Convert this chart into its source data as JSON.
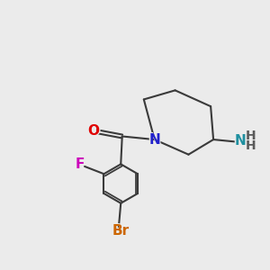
{
  "background_color": "#ebebeb",
  "bond_color": "#3a3a3a",
  "bond_width": 1.5,
  "atom_colors": {
    "O": "#e00000",
    "N_amide": "#2222cc",
    "N_amine": "#2090a0",
    "F": "#cc00bb",
    "Br": "#cc6600",
    "H": "#5a5a5a"
  },
  "font_size_atom": 11,
  "font_size_H": 10,
  "font_size_Br": 11
}
